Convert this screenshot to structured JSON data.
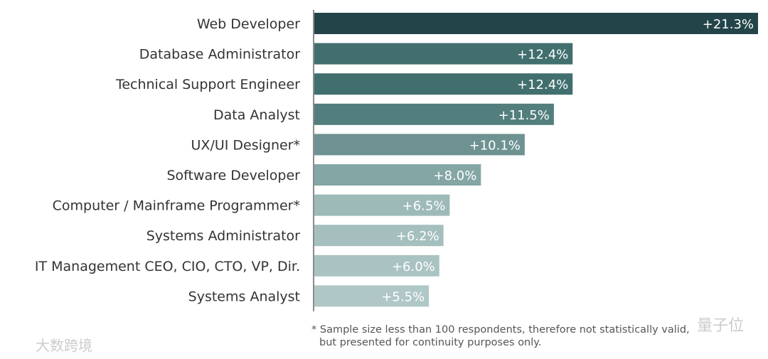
{
  "chart_data": {
    "type": "bar",
    "orientation": "horizontal",
    "categories": [
      "Web Developer",
      "Database Administrator",
      "Technical Support Engineer",
      "Data Analyst",
      "UX/UI Designer*",
      "Software Developer",
      "Computer / Mainframe Programmer*",
      "Systems Administrator",
      "IT Management CEO, CIO, CTO, VP, Dir.",
      "Systems Analyst"
    ],
    "values": [
      21.3,
      12.4,
      12.4,
      11.5,
      10.1,
      8.0,
      6.5,
      6.2,
      6.0,
      5.5
    ],
    "value_labels": [
      "+21.3%",
      "+12.4%",
      "+12.4%",
      "+11.5%",
      "+10.1%",
      "+8.0%",
      "+6.5%",
      "+6.2%",
      "+6.0%",
      "+5.5%"
    ],
    "colors": [
      "#234549",
      "#416f6e",
      "#416f6e",
      "#527e7d",
      "#6d9291",
      "#84a6a5",
      "#9dbab9",
      "#a4bfbe",
      "#a9c3c2",
      "#afc7c6"
    ],
    "xlim": [
      0,
      21.3
    ],
    "grid": false,
    "footnote": [
      "* Sample size less than 100 respondents, therefore not statistically valid,",
      "but presented for continuity purposes only."
    ]
  },
  "watermarks": [
    "量子位",
    "大数跨境"
  ]
}
